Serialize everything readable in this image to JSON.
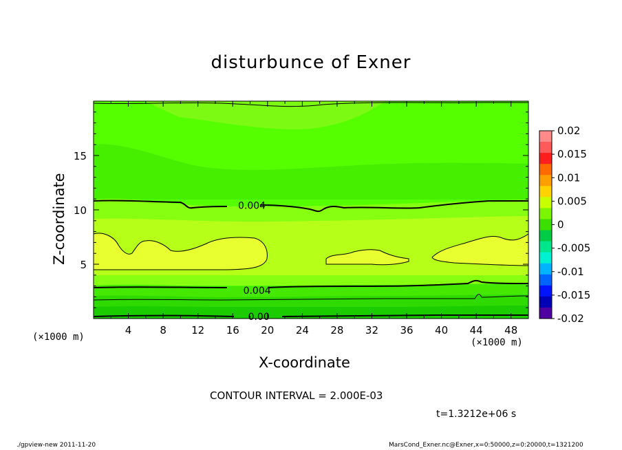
{
  "chart_data": {
    "type": "contour",
    "title": "disturbunce of Exner",
    "xlabel": "X-coordinate",
    "ylabel": "Z-coordinate",
    "x_unit_left": "(×1000 m)",
    "x_unit_right": "(×1000 m)",
    "xlim": [
      0,
      50
    ],
    "ylim": [
      0,
      20
    ],
    "x_ticks": [
      4,
      8,
      12,
      16,
      20,
      24,
      28,
      32,
      36,
      40,
      44,
      48
    ],
    "y_ticks": [
      5,
      10,
      15
    ],
    "colorbar": {
      "tick_labels": [
        "0.02",
        "0.015",
        "0.01",
        "0.005",
        "0",
        "-0.005",
        "-0.01",
        "-0.015",
        "-0.02"
      ],
      "range": [
        -0.02,
        0.02
      ],
      "colors": [
        "#ff8a8a",
        "#ff5a5a",
        "#ff1e1e",
        "#ff6a00",
        "#ff9e00",
        "#ffd200",
        "#c8ff00",
        "#7cf500",
        "#3ce000",
        "#00cc46",
        "#00e68c",
        "#00f0d2",
        "#00b4ff",
        "#0064ff",
        "#0014ff",
        "#0000b4",
        "#5000a0"
      ]
    },
    "contour_labels": [
      {
        "text": "0.004",
        "x": 18.2,
        "z": 10.4
      },
      {
        "text": "0.004",
        "x": 18.8,
        "z": 2.6
      },
      {
        "text": "0.00",
        "x": 19.0,
        "z": 0.2
      }
    ],
    "contour_interval": "CONTOUR INTERVAL = 2.000E-03"
  },
  "timestamp": "t=1.3212e+06 s",
  "footer_left": "./gpview-new   2011-11-20",
  "footer_right": "MarsCond_Exner.nc@Exner,x=0:50000,z=0:20000,t=1321200"
}
